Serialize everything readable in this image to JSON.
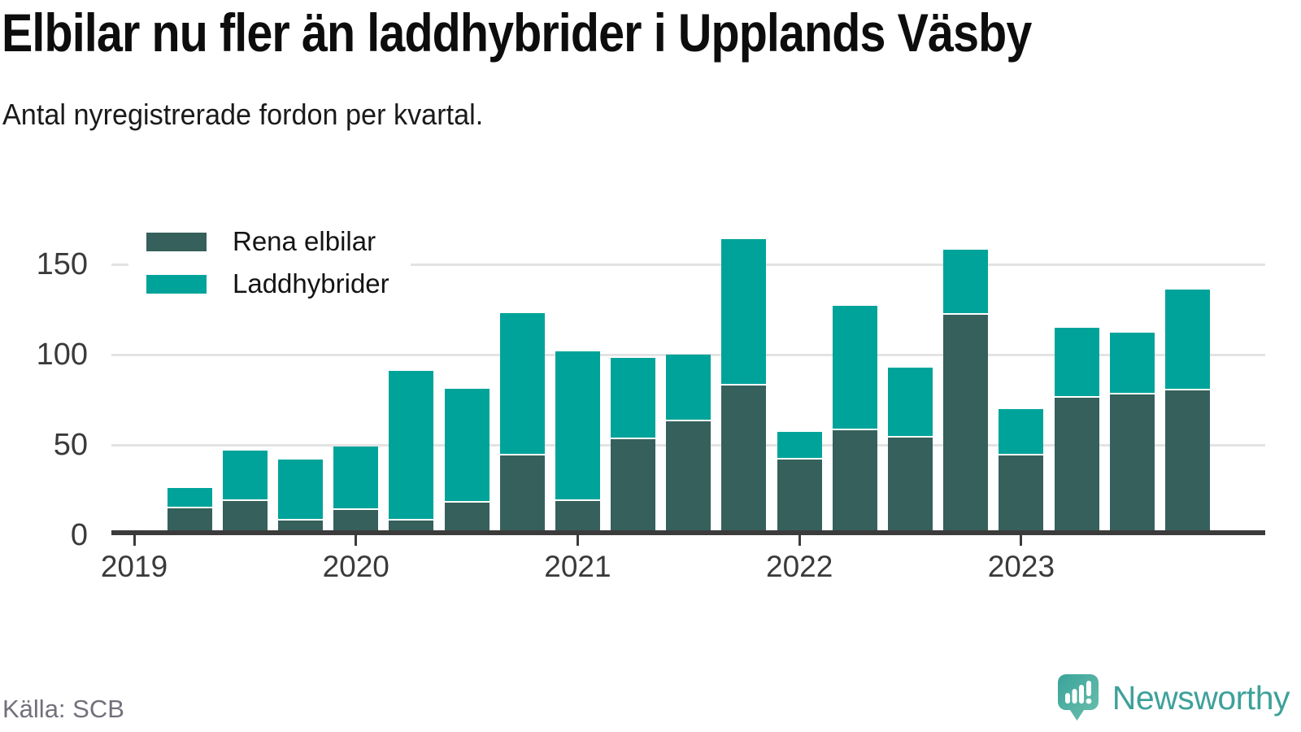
{
  "header": {
    "title": "Elbilar nu fler än laddhybrider i Upplands Väsby",
    "subtitle": "Antal nyregistrerade fordon per kvartal."
  },
  "legend": [
    {
      "label": "Rena elbilar",
      "color": "#36605c"
    },
    {
      "label": "Laddhybrider",
      "color": "#00a39a"
    }
  ],
  "footer": {
    "source": "Källa: SCB",
    "brand": "Newsworthy",
    "logo_icon": "newsworthy-speech-bubble-chart-icon"
  },
  "colors": {
    "electric_dark_teal": "#36605c",
    "hybrid_teal": "#00a39a",
    "gridline": "#e3e3e3",
    "axis": "#3b3b3b",
    "brand_teal": "#3ea19a"
  },
  "chart_data": {
    "type": "bar",
    "stacked": true,
    "title": "Elbilar nu fler än laddhybrider i Upplands Väsby",
    "subtitle": "Antal nyregistrerade fordon per kvartal.",
    "xlabel": "",
    "ylabel": "",
    "grid": "horizontal",
    "legend_position": "top-left-inside",
    "ylim": [
      0,
      180
    ],
    "y_ticks": [
      0,
      50,
      100,
      150
    ],
    "x_tick_labels": [
      "2019",
      "2020",
      "2021",
      "2022",
      "2023"
    ],
    "x": [
      "2019-Q2",
      "2019-Q3",
      "2019-Q4",
      "2020-Q1",
      "2020-Q2",
      "2020-Q3",
      "2020-Q4",
      "2021-Q1",
      "2021-Q2",
      "2021-Q3",
      "2021-Q4",
      "2022-Q1",
      "2022-Q2",
      "2022-Q3",
      "2022-Q4",
      "2023-Q1",
      "2023-Q2",
      "2023-Q3",
      "2023-Q4"
    ],
    "series": [
      {
        "name": "Rena elbilar",
        "color": "#36605c",
        "values": [
          15,
          19,
          8,
          14,
          8,
          18,
          44,
          19,
          53,
          63,
          83,
          42,
          58,
          54,
          122,
          44,
          76,
          78,
          80
        ]
      },
      {
        "name": "Laddhybrider",
        "color": "#00a39a",
        "values": [
          11,
          28,
          34,
          35,
          83,
          63,
          79,
          83,
          45,
          37,
          81,
          15,
          69,
          39,
          36,
          26,
          39,
          34,
          56
        ]
      }
    ]
  }
}
